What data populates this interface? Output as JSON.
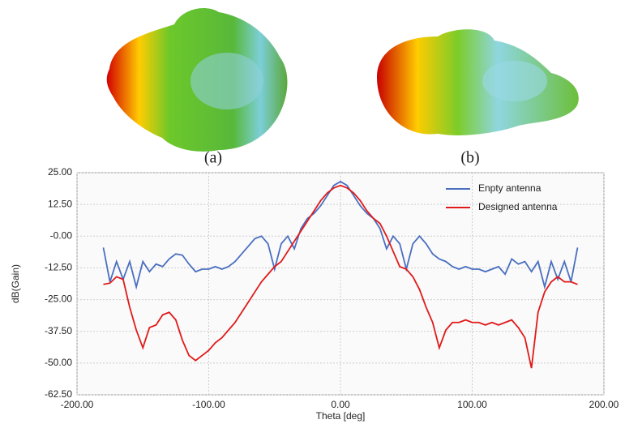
{
  "images": [
    {
      "label": "(a)"
    },
    {
      "label": "(b)"
    }
  ],
  "chart_data": {
    "type": "line",
    "xlabel": "Theta [deg]",
    "ylabel": "dB(Gain)",
    "xlim": [
      -200,
      200
    ],
    "xticks": [
      {
        "value": -200,
        "label": "-200.00"
      },
      {
        "value": -100,
        "label": "-100.00"
      },
      {
        "value": 0,
        "label": "0.00"
      },
      {
        "value": 100,
        "label": "100.00"
      },
      {
        "value": 200,
        "label": "200.00"
      }
    ],
    "ylim": [
      -62.5,
      25
    ],
    "yticks": [
      {
        "value": 25,
        "label": "25.00"
      },
      {
        "value": 12.5,
        "label": "12.50"
      },
      {
        "value": 0,
        "label": "-0.00"
      },
      {
        "value": -12.5,
        "label": "-12.50"
      },
      {
        "value": -25,
        "label": "-25.00"
      },
      {
        "value": -37.5,
        "label": "-37.50"
      },
      {
        "value": -50,
        "label": "-50.00"
      },
      {
        "value": -62.5,
        "label": "-62.50"
      }
    ],
    "grid": true,
    "legend": "top-right",
    "x": [
      -180,
      -175,
      -170,
      -165,
      -160,
      -155,
      -150,
      -145,
      -140,
      -135,
      -130,
      -125,
      -120,
      -115,
      -110,
      -105,
      -100,
      -95,
      -90,
      -85,
      -80,
      -75,
      -70,
      -65,
      -60,
      -55,
      -50,
      -45,
      -40,
      -35,
      -30,
      -25,
      -20,
      -15,
      -10,
      -5,
      0,
      5,
      10,
      15,
      20,
      25,
      30,
      35,
      40,
      45,
      50,
      55,
      60,
      65,
      70,
      75,
      80,
      85,
      90,
      95,
      100,
      105,
      110,
      115,
      120,
      125,
      130,
      135,
      140,
      145,
      150,
      155,
      160,
      165,
      170,
      175,
      180
    ],
    "series": [
      {
        "name": "Enpty antenna",
        "color": "#4a6fc0",
        "values": [
          -4.5,
          -18,
          -10,
          -17,
          -10,
          -20,
          -10,
          -14,
          -11,
          -12,
          -9,
          -7,
          -7.5,
          -11,
          -14,
          -13,
          -13,
          -12,
          -13,
          -12,
          -10,
          -7,
          -4,
          -1,
          0,
          -3,
          -13,
          -3,
          0,
          -5,
          3,
          7,
          9,
          12,
          16,
          20,
          21.5,
          20,
          16,
          12,
          9,
          7,
          3,
          -5,
          0,
          -3,
          -13,
          -3,
          0,
          -3,
          -7,
          -9,
          -10,
          -12,
          -13,
          -12,
          -13,
          -13,
          -14,
          -13,
          -12,
          -15,
          -9,
          -11,
          -10,
          -14,
          -10,
          -20,
          -10,
          -17,
          -10,
          -18,
          -4.5
        ]
      },
      {
        "name": "Designed antenna",
        "color": "#e01a1a",
        "values": [
          -19,
          -18.5,
          -16,
          -17,
          -28,
          -37,
          -44,
          -36,
          -35,
          -31,
          -30,
          -33,
          -41,
          -47,
          -49,
          -47,
          -45,
          -42,
          -40,
          -37,
          -34,
          -30,
          -26,
          -22,
          -18,
          -15,
          -12,
          -10,
          -6,
          -2,
          2,
          6,
          10,
          14,
          17,
          19,
          20,
          19,
          17,
          14,
          10,
          7,
          5,
          0,
          -6,
          -12,
          -13,
          -16,
          -21,
          -28,
          -34,
          -44,
          -37,
          -34,
          -34,
          -33,
          -34,
          -34,
          -35,
          -34,
          -35,
          -34,
          -33,
          -36,
          -40,
          -52,
          -30,
          -22,
          -18,
          -16,
          -18,
          -18,
          -19
        ]
      }
    ]
  }
}
